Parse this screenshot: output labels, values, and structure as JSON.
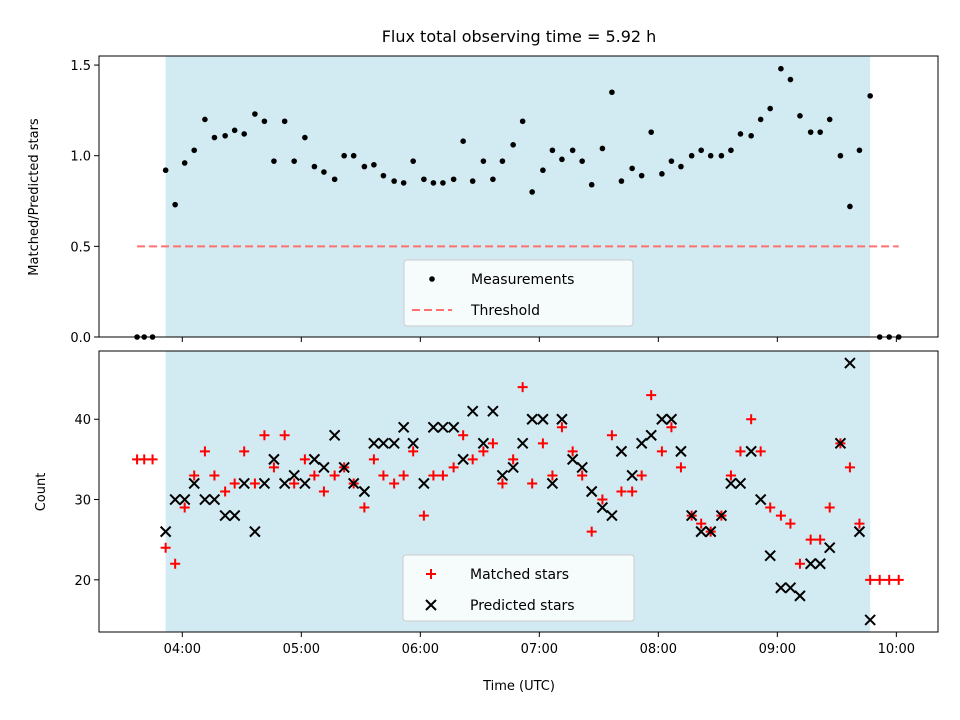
{
  "chart_data": {
    "type": "scatter",
    "title": "Flux total observing time = 5.92 h",
    "xlabel": "Time (UTC)",
    "x_unit": "hours UTC",
    "xlim": [
      3.3,
      10.35
    ],
    "x_tick_values": [
      4,
      5,
      6,
      7,
      8,
      9,
      10
    ],
    "x_tick_labels": [
      "04:00",
      "05:00",
      "06:00",
      "07:00",
      "08:00",
      "09:00",
      "10:00"
    ],
    "observing_window": [
      3.86,
      9.78
    ],
    "shade_color": "#add8e6",
    "panels": [
      {
        "ylabel": "Matched/Predicted stars",
        "ylim": [
          0,
          1.55
        ],
        "y_ticks": [
          0.0,
          0.5,
          1.0,
          1.5
        ],
        "y_tick_labels": [
          "0.0",
          "0.5",
          "1.0",
          "1.5"
        ],
        "legend_position": "bottom-center",
        "series": [
          {
            "name": "Measurements",
            "style": "dot",
            "color": "#000000",
            "x": [
              3.62,
              3.68,
              3.75,
              3.86,
              3.94,
              4.02,
              4.1,
              4.19,
              4.27,
              4.36,
              4.44,
              4.52,
              4.61,
              4.69,
              4.77,
              4.86,
              4.94,
              5.03,
              5.11,
              5.19,
              5.28,
              5.36,
              5.44,
              5.53,
              5.61,
              5.69,
              5.78,
              5.86,
              5.94,
              6.03,
              6.11,
              6.19,
              6.28,
              6.36,
              6.44,
              6.53,
              6.61,
              6.69,
              6.78,
              6.86,
              6.94,
              7.03,
              7.11,
              7.19,
              7.28,
              7.36,
              7.44,
              7.53,
              7.61,
              7.69,
              7.78,
              7.86,
              7.94,
              8.03,
              8.11,
              8.19,
              8.28,
              8.36,
              8.44,
              8.53,
              8.61,
              8.69,
              8.78,
              8.86,
              8.94,
              9.03,
              9.11,
              9.19,
              9.28,
              9.36,
              9.44,
              9.53,
              9.61,
              9.69,
              9.78,
              9.86,
              9.94,
              10.02
            ],
            "y": [
              0,
              0,
              0,
              0.92,
              0.73,
              0.96,
              1.03,
              1.2,
              1.1,
              1.11,
              1.14,
              1.12,
              1.23,
              1.19,
              0.97,
              1.19,
              0.97,
              1.1,
              0.94,
              0.91,
              0.87,
              1.0,
              1.0,
              0.94,
              0.95,
              0.89,
              0.86,
              0.85,
              0.97,
              0.87,
              0.85,
              0.85,
              0.87,
              1.08,
              0.86,
              0.97,
              0.87,
              0.97,
              1.06,
              1.19,
              0.8,
              0.92,
              1.03,
              0.98,
              1.03,
              0.97,
              0.84,
              1.04,
              1.35,
              0.86,
              0.93,
              0.89,
              1.13,
              0.9,
              0.97,
              0.94,
              1.0,
              1.03,
              1.0,
              1.0,
              1.03,
              1.12,
              1.11,
              1.2,
              1.26,
              1.48,
              1.42,
              1.22,
              1.13,
              1.13,
              1.2,
              1.0,
              0.72,
              1.03,
              1.33,
              0,
              0,
              0
            ]
          },
          {
            "name": "Threshold",
            "style": "dashed-line",
            "color": "#ff7070",
            "x": [
              3.62,
              10.02
            ],
            "y": [
              0.5,
              0.5
            ]
          }
        ]
      },
      {
        "ylabel": "Count",
        "ylim": [
          13.5,
          48.5
        ],
        "y_ticks": [
          20,
          30,
          40
        ],
        "y_tick_labels": [
          "20",
          "30",
          "40"
        ],
        "legend_position": "bottom-center",
        "series": [
          {
            "name": "Matched stars",
            "style": "plus",
            "color": "#ff0000",
            "x": [
              3.62,
              3.68,
              3.75,
              3.86,
              3.94,
              4.02,
              4.1,
              4.19,
              4.27,
              4.36,
              4.44,
              4.52,
              4.61,
              4.69,
              4.77,
              4.86,
              4.94,
              5.03,
              5.11,
              5.19,
              5.28,
              5.36,
              5.44,
              5.53,
              5.61,
              5.69,
              5.78,
              5.86,
              5.94,
              6.03,
              6.11,
              6.19,
              6.28,
              6.36,
              6.44,
              6.53,
              6.61,
              6.69,
              6.78,
              6.86,
              6.94,
              7.03,
              7.11,
              7.19,
              7.28,
              7.36,
              7.44,
              7.53,
              7.61,
              7.69,
              7.78,
              7.86,
              7.94,
              8.03,
              8.11,
              8.19,
              8.28,
              8.36,
              8.44,
              8.53,
              8.61,
              8.69,
              8.78,
              8.86,
              8.94,
              9.03,
              9.11,
              9.19,
              9.28,
              9.36,
              9.44,
              9.53,
              9.61,
              9.69,
              9.78,
              9.86,
              9.94,
              10.02
            ],
            "y": [
              35,
              35,
              35,
              24,
              22,
              29,
              33,
              36,
              33,
              31,
              32,
              36,
              32,
              38,
              34,
              38,
              32,
              35,
              33,
              31,
              33,
              34,
              32,
              29,
              35,
              33,
              32,
              33,
              36,
              28,
              33,
              33,
              34,
              38,
              35,
              36,
              37,
              32,
              35,
              44,
              32,
              37,
              33,
              39,
              36,
              33,
              26,
              30,
              38,
              31,
              31,
              33,
              43,
              36,
              39,
              34,
              28,
              27,
              26,
              28,
              33,
              36,
              40,
              36,
              29,
              28,
              27,
              22,
              25,
              25,
              29,
              37,
              34,
              27,
              20,
              20,
              20,
              20
            ]
          },
          {
            "name": "Predicted stars",
            "style": "x",
            "color": "#000000",
            "x": [
              3.86,
              3.94,
              4.02,
              4.1,
              4.19,
              4.27,
              4.36,
              4.44,
              4.52,
              4.61,
              4.69,
              4.77,
              4.86,
              4.94,
              5.03,
              5.11,
              5.19,
              5.28,
              5.36,
              5.44,
              5.53,
              5.61,
              5.69,
              5.78,
              5.86,
              5.94,
              6.03,
              6.11,
              6.19,
              6.28,
              6.36,
              6.44,
              6.53,
              6.61,
              6.69,
              6.78,
              6.86,
              6.94,
              7.03,
              7.11,
              7.19,
              7.28,
              7.36,
              7.44,
              7.53,
              7.61,
              7.69,
              7.78,
              7.86,
              7.94,
              8.03,
              8.11,
              8.19,
              8.28,
              8.36,
              8.44,
              8.53,
              8.61,
              8.69,
              8.78,
              8.86,
              8.94,
              9.03,
              9.11,
              9.19,
              9.28,
              9.36,
              9.44,
              9.53,
              9.61,
              9.69,
              9.78
            ],
            "y": [
              26,
              30,
              30,
              32,
              30,
              30,
              28,
              28,
              32,
              26,
              32,
              35,
              32,
              33,
              32,
              35,
              34,
              38,
              34,
              32,
              31,
              37,
              37,
              37,
              39,
              37,
              32,
              39,
              39,
              39,
              35,
              41,
              37,
              41,
              33,
              34,
              37,
              40,
              40,
              32,
              40,
              35,
              34,
              31,
              29,
              28,
              36,
              33,
              37,
              38,
              40,
              40,
              36,
              28,
              26,
              26,
              28,
              32,
              32,
              36,
              30,
              23,
              19,
              19,
              18,
              22,
              22,
              24,
              37,
              47,
              26,
              15
            ]
          }
        ]
      }
    ]
  }
}
